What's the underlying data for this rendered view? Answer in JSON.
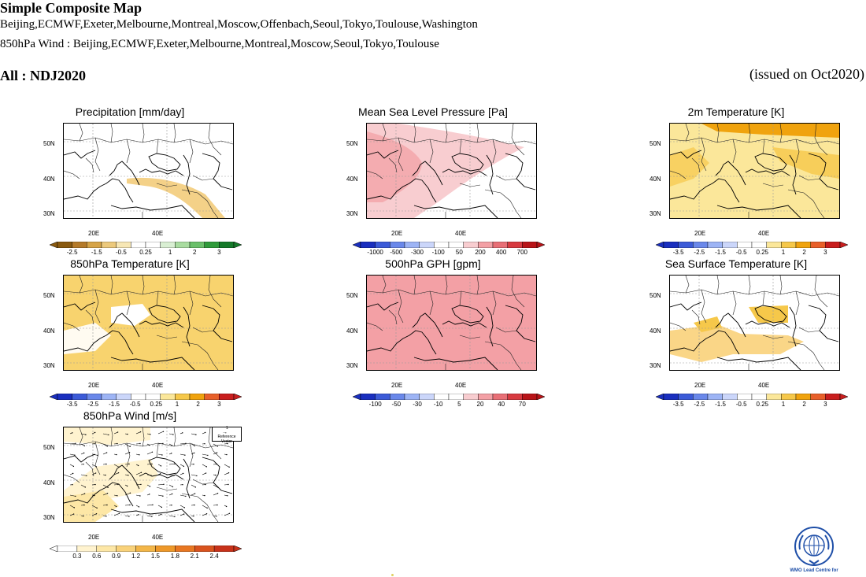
{
  "header": {
    "title": "Simple Composite Map",
    "centres_line": "Beijing,ECMWF,Exeter,Melbourne,Montreal,Moscow,Offenbach,Seoul,Tokyo,Toulouse,Washington",
    "wind_line": "850hPa Wind : Beijing,ECMWF,Exeter,Melbourne,Montreal,Moscow,Seoul,Tokyo,Toulouse",
    "period": "All : NDJ2020",
    "issued": "(issued on Oct2020)"
  },
  "axes": {
    "lat_labels": [
      "50N",
      "40N",
      "30N"
    ],
    "lon_labels": [
      "20E",
      "40E"
    ]
  },
  "panels": [
    {
      "title": "Precipitation [mm/day]",
      "colors": [
        "#8a5a10",
        "#b47a2a",
        "#d6a448",
        "#ecc97c",
        "#f7e7b5",
        "#ffffff",
        "#ffffff",
        "#d9efd3",
        "#a9dca0",
        "#6ac06a",
        "#2f9b3a",
        "#157a2a"
      ],
      "ticks": [
        "-2.5",
        "-1.5",
        "-0.5",
        "0.25",
        "1",
        "2",
        "3"
      ]
    },
    {
      "title": "Mean Sea Level Pressure [Pa]",
      "colors": [
        "#1a2fbf",
        "#3c5bd8",
        "#6a88ea",
        "#9db4f5",
        "#cbd6fa",
        "#ffffff",
        "#ffffff",
        "#f8cdd0",
        "#f3a0a5",
        "#e86f76",
        "#d83a40",
        "#b81418"
      ],
      "ticks": [
        "-1000",
        "-500",
        "-300",
        "-100",
        "50",
        "200",
        "400",
        "700"
      ]
    },
    {
      "title": "2m Temperature [K]",
      "colors": [
        "#1a2fbf",
        "#3c5bd8",
        "#6a88ea",
        "#9db4f5",
        "#cbd6fa",
        "#ffffff",
        "#ffffff",
        "#fbe79a",
        "#f6c84a",
        "#f0a30e",
        "#e8602a",
        "#c91e1e"
      ],
      "ticks": [
        "-3.5",
        "-2.5",
        "-1.5",
        "-0.5",
        "0.25",
        "1",
        "2",
        "3"
      ]
    },
    {
      "title": "850hPa Temperature [K]",
      "colors": [
        "#1a2fbf",
        "#3c5bd8",
        "#6a88ea",
        "#9db4f5",
        "#cbd6fa",
        "#ffffff",
        "#ffffff",
        "#fbe79a",
        "#f6c84a",
        "#f0a30e",
        "#e8602a",
        "#c91e1e"
      ],
      "ticks": [
        "-3.5",
        "-2.5",
        "-1.5",
        "-0.5",
        "0.25",
        "1",
        "2",
        "3"
      ]
    },
    {
      "title": "500hPa GPH [gpm]",
      "colors": [
        "#1a2fbf",
        "#3c5bd8",
        "#6a88ea",
        "#9db4f5",
        "#cbd6fa",
        "#ffffff",
        "#ffffff",
        "#f8cdd0",
        "#f3a0a5",
        "#e86f76",
        "#d83a40",
        "#b81418"
      ],
      "ticks": [
        "-100",
        "-50",
        "-30",
        "-10",
        "5",
        "20",
        "40",
        "70"
      ]
    },
    {
      "title": "Sea Surface Temperature [K]",
      "colors": [
        "#1a2fbf",
        "#3c5bd8",
        "#6a88ea",
        "#9db4f5",
        "#cbd6fa",
        "#ffffff",
        "#ffffff",
        "#fbe79a",
        "#f6c84a",
        "#f0a30e",
        "#e8602a",
        "#c91e1e"
      ],
      "ticks": [
        "-3.5",
        "-2.5",
        "-1.5",
        "-0.5",
        "0.25",
        "1",
        "2",
        "3"
      ]
    },
    {
      "title": "850hPa Wind [m/s]",
      "colors": [
        "#ffffff",
        "#fff3cf",
        "#fde7a6",
        "#f9d27a",
        "#f3b648",
        "#ee9829",
        "#e87722",
        "#d9531e",
        "#c8321a"
      ],
      "ticks": [
        "0.3",
        "0.6",
        "0.9",
        "1.2",
        "1.5",
        "1.8",
        "2.1",
        "2.4"
      ]
    }
  ],
  "reference_vector": {
    "value": "1",
    "label": "Reference Vector"
  },
  "logo": {
    "caption": "WMO Lead Centre for",
    "color": "#1f4fa8"
  }
}
